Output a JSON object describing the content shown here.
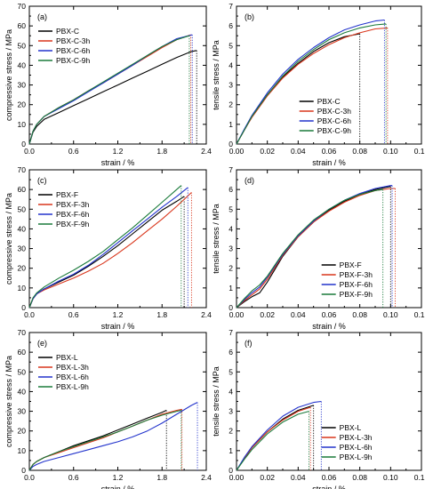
{
  "chart_data": [
    {
      "type": "line",
      "panel_label": "(a)",
      "xlabel": "strain / %",
      "ylabel": "compressive stress / MPa",
      "xlim": [
        0,
        2.4
      ],
      "ylim": [
        0,
        70
      ],
      "xticks": [
        0.0,
        0.6,
        1.2,
        1.8,
        2.4
      ],
      "yticks": [
        0,
        10,
        20,
        30,
        40,
        50,
        60,
        70
      ],
      "xtick_labels": [
        "0.0",
        "0.6",
        "1.2",
        "1.8",
        "2.4"
      ],
      "ytick_labels": [
        "0",
        "10",
        "20",
        "30",
        "40",
        "50",
        "60",
        "70"
      ],
      "legend_position": "top-left",
      "series": [
        {
          "name": "PBX-C",
          "color": "#000000",
          "x": [
            0,
            0.05,
            0.1,
            0.2,
            0.4,
            0.6,
            0.8,
            1.0,
            1.2,
            1.4,
            1.6,
            1.8,
            2.0,
            2.2,
            2.27
          ],
          "y": [
            0,
            6,
            9,
            12.5,
            16,
            19.5,
            23,
            26.5,
            30,
            33.5,
            37,
            40.5,
            44,
            47,
            47.5
          ]
        },
        {
          "name": "PBX-C-3h",
          "color": "#d9361c",
          "x": [
            0,
            0.05,
            0.1,
            0.2,
            0.4,
            0.6,
            0.8,
            1.0,
            1.2,
            1.4,
            1.6,
            1.8,
            2.0,
            2.19
          ],
          "y": [
            0,
            6.5,
            10,
            14,
            18.5,
            22.5,
            27,
            31,
            35.5,
            40,
            44.5,
            49,
            53,
            55.5
          ]
        },
        {
          "name": "PBX-C-6h",
          "color": "#2233cc",
          "x": [
            0,
            0.05,
            0.1,
            0.2,
            0.4,
            0.6,
            0.8,
            1.0,
            1.2,
            1.4,
            1.6,
            1.8,
            2.0,
            2.21
          ],
          "y": [
            0,
            6.5,
            10,
            14,
            18,
            22,
            26.5,
            31,
            35.5,
            40,
            45,
            49.5,
            53.5,
            55.5
          ]
        },
        {
          "name": "PBX-C-9h",
          "color": "#1a7a3a",
          "x": [
            0,
            0.05,
            0.1,
            0.2,
            0.4,
            0.6,
            0.8,
            1.0,
            1.2,
            1.4,
            1.6,
            1.8,
            2.0,
            2.17
          ],
          "y": [
            0,
            6.5,
            10,
            14,
            18.5,
            22.5,
            27,
            31.5,
            36,
            40.5,
            45,
            49.5,
            53,
            55
          ]
        }
      ]
    },
    {
      "type": "line",
      "panel_label": "(b)",
      "xlabel": "strain / %",
      "ylabel": "tensile stress / MPa",
      "xlim": [
        0,
        0.12
      ],
      "ylim": [
        0,
        7
      ],
      "xticks": [
        0.0,
        0.02,
        0.04,
        0.06,
        0.08,
        0.1,
        0.12
      ],
      "yticks": [
        0,
        1,
        2,
        3,
        4,
        5,
        6,
        7
      ],
      "xtick_labels": [
        "0.00",
        "0.02",
        "0.04",
        "0.06",
        "0.08",
        "0.10",
        "0.12"
      ],
      "ytick_labels": [
        "0",
        "1",
        "2",
        "3",
        "4",
        "5",
        "6",
        "7"
      ],
      "legend_position": "bottom-center",
      "series": [
        {
          "name": "PBX-C",
          "color": "#000000",
          "x": [
            0,
            0.005,
            0.01,
            0.02,
            0.03,
            0.04,
            0.05,
            0.06,
            0.07,
            0.08
          ],
          "y": [
            0,
            0.7,
            1.4,
            2.5,
            3.4,
            4.1,
            4.7,
            5.15,
            5.45,
            5.6
          ]
        },
        {
          "name": "PBX-C-3h",
          "color": "#d9361c",
          "x": [
            0,
            0.005,
            0.01,
            0.02,
            0.03,
            0.04,
            0.05,
            0.06,
            0.07,
            0.08,
            0.09,
            0.098
          ],
          "y": [
            0,
            0.7,
            1.35,
            2.45,
            3.35,
            4.05,
            4.6,
            5.05,
            5.4,
            5.65,
            5.85,
            5.9
          ]
        },
        {
          "name": "PBX-C-6h",
          "color": "#2233cc",
          "x": [
            0,
            0.005,
            0.01,
            0.02,
            0.03,
            0.04,
            0.05,
            0.06,
            0.07,
            0.08,
            0.09,
            0.096
          ],
          "y": [
            0,
            0.75,
            1.45,
            2.6,
            3.55,
            4.3,
            4.9,
            5.4,
            5.8,
            6.05,
            6.25,
            6.3
          ]
        },
        {
          "name": "PBX-C-9h",
          "color": "#1a7a3a",
          "x": [
            0,
            0.005,
            0.01,
            0.02,
            0.03,
            0.04,
            0.05,
            0.06,
            0.07,
            0.08,
            0.09,
            0.097
          ],
          "y": [
            0,
            0.7,
            1.4,
            2.5,
            3.45,
            4.2,
            4.8,
            5.3,
            5.65,
            5.9,
            6.05,
            6.1
          ]
        }
      ]
    },
    {
      "type": "line",
      "panel_label": "(c)",
      "xlabel": "strain / %",
      "ylabel": "compressive stress / MPa",
      "xlim": [
        0,
        2.4
      ],
      "ylim": [
        0,
        70
      ],
      "xticks": [
        0.0,
        0.6,
        1.2,
        1.8,
        2.4
      ],
      "yticks": [
        0,
        10,
        20,
        30,
        40,
        50,
        60,
        70
      ],
      "xtick_labels": [
        "0.0",
        "0.6",
        "1.2",
        "1.8",
        "2.4"
      ],
      "ytick_labels": [
        "0",
        "10",
        "20",
        "30",
        "40",
        "50",
        "60",
        "70"
      ],
      "legend_position": "top-left",
      "series": [
        {
          "name": "PBX-F",
          "color": "#000000",
          "x": [
            0,
            0.05,
            0.1,
            0.2,
            0.4,
            0.6,
            0.8,
            1.0,
            1.2,
            1.4,
            1.6,
            1.8,
            2.0,
            2.1
          ],
          "y": [
            0,
            4.5,
            7,
            9.5,
            13,
            16.5,
            21,
            26,
            31.5,
            37.5,
            43.5,
            49.5,
            54,
            56.5
          ]
        },
        {
          "name": "PBX-F-3h",
          "color": "#d9361c",
          "x": [
            0,
            0.05,
            0.1,
            0.2,
            0.4,
            0.6,
            0.8,
            1.0,
            1.2,
            1.4,
            1.6,
            1.8,
            2.0,
            2.2
          ],
          "y": [
            0,
            4.5,
            7,
            9,
            12,
            15,
            18.5,
            22.5,
            27.5,
            33,
            39,
            45,
            51.5,
            58.5
          ]
        },
        {
          "name": "PBX-F-6h",
          "color": "#2233cc",
          "x": [
            0,
            0.05,
            0.1,
            0.2,
            0.4,
            0.6,
            0.8,
            1.0,
            1.2,
            1.4,
            1.6,
            1.8,
            2.0,
            2.15
          ],
          "y": [
            0,
            4.5,
            7,
            9.5,
            13.5,
            17,
            21.5,
            27,
            33,
            39,
            45,
            51,
            56.5,
            61
          ]
        },
        {
          "name": "PBX-F-9h",
          "color": "#1a7a3a",
          "x": [
            0,
            0.05,
            0.1,
            0.2,
            0.4,
            0.6,
            0.8,
            1.0,
            1.2,
            1.4,
            1.6,
            1.8,
            2.0,
            2.06
          ],
          "y": [
            0,
            5,
            7.5,
            10.5,
            15,
            19,
            23.5,
            28.5,
            34.5,
            40.5,
            47,
            53.5,
            60,
            62
          ]
        }
      ]
    },
    {
      "type": "line",
      "panel_label": "(d)",
      "xlabel": "strain / %",
      "ylabel": "tensile stress / MPa",
      "xlim": [
        0,
        0.12
      ],
      "ylim": [
        0,
        7
      ],
      "xticks": [
        0.0,
        0.02,
        0.04,
        0.06,
        0.08,
        0.1,
        0.12
      ],
      "yticks": [
        0,
        1,
        2,
        3,
        4,
        5,
        6,
        7
      ],
      "xtick_labels": [
        "0.00",
        "0.02",
        "0.04",
        "0.06",
        "0.08",
        "0.10",
        "0.12"
      ],
      "ytick_labels": [
        "0",
        "1",
        "2",
        "3",
        "4",
        "5",
        "6",
        "7"
      ],
      "legend_position": "bottom-right",
      "series": [
        {
          "name": "PBX-F",
          "color": "#000000",
          "x": [
            0,
            0.005,
            0.01,
            0.015,
            0.02,
            0.03,
            0.04,
            0.05,
            0.06,
            0.07,
            0.08,
            0.09,
            0.1
          ],
          "y": [
            0,
            0.3,
            0.55,
            0.75,
            1.3,
            2.6,
            3.6,
            4.35,
            4.95,
            5.4,
            5.75,
            6.0,
            6.15
          ]
        },
        {
          "name": "PBX-F-3h",
          "color": "#d9361c",
          "x": [
            0,
            0.005,
            0.01,
            0.015,
            0.02,
            0.03,
            0.04,
            0.05,
            0.06,
            0.07,
            0.08,
            0.09,
            0.1,
            0.103
          ],
          "y": [
            0,
            0.35,
            0.65,
            0.95,
            1.45,
            2.65,
            3.6,
            4.35,
            4.9,
            5.35,
            5.7,
            5.95,
            6.05,
            6.05
          ]
        },
        {
          "name": "PBX-F-6h",
          "color": "#2233cc",
          "x": [
            0,
            0.005,
            0.01,
            0.015,
            0.02,
            0.03,
            0.04,
            0.05,
            0.06,
            0.07,
            0.08,
            0.09,
            0.1,
            0.101
          ],
          "y": [
            0,
            0.4,
            0.75,
            1.05,
            1.55,
            2.7,
            3.65,
            4.4,
            5.0,
            5.45,
            5.8,
            6.05,
            6.2,
            6.2
          ]
        },
        {
          "name": "PBX-F-9h",
          "color": "#1a7a3a",
          "x": [
            0,
            0.005,
            0.01,
            0.015,
            0.02,
            0.03,
            0.04,
            0.05,
            0.06,
            0.07,
            0.08,
            0.09,
            0.095
          ],
          "y": [
            0,
            0.45,
            0.85,
            1.15,
            1.6,
            2.75,
            3.7,
            4.45,
            5.0,
            5.45,
            5.75,
            5.95,
            6.0
          ]
        }
      ]
    },
    {
      "type": "line",
      "panel_label": "(e)",
      "xlabel": "strain / %",
      "ylabel": "compressive stress / MPa",
      "xlim": [
        0,
        2.4
      ],
      "ylim": [
        0,
        70
      ],
      "xticks": [
        0.0,
        0.6,
        1.2,
        1.8,
        2.4
      ],
      "yticks": [
        0,
        10,
        20,
        30,
        40,
        50,
        60,
        70
      ],
      "xtick_labels": [
        "0.0",
        "0.6",
        "1.2",
        "1.8",
        "2.4"
      ],
      "ytick_labels": [
        "0",
        "10",
        "20",
        "30",
        "40",
        "50",
        "60",
        "70"
      ],
      "legend_position": "top-left",
      "series": [
        {
          "name": "PBX-L",
          "color": "#000000",
          "x": [
            0,
            0.05,
            0.1,
            0.2,
            0.4,
            0.6,
            0.8,
            1.0,
            1.2,
            1.4,
            1.6,
            1.8,
            1.86
          ],
          "y": [
            0,
            3,
            4.5,
            6.5,
            9.5,
            12.5,
            15,
            17.5,
            20.5,
            23.5,
            26.5,
            29.5,
            30.5
          ]
        },
        {
          "name": "PBX-L-3h",
          "color": "#d9361c",
          "x": [
            0,
            0.05,
            0.1,
            0.2,
            0.4,
            0.6,
            0.8,
            1.0,
            1.2,
            1.4,
            1.6,
            1.8,
            2.0,
            2.07
          ],
          "y": [
            0,
            3,
            4.5,
            6.5,
            9,
            11.5,
            14,
            16.5,
            19.5,
            22.5,
            25.5,
            28.5,
            30.5,
            31
          ]
        },
        {
          "name": "PBX-L-6h",
          "color": "#2233cc",
          "x": [
            0,
            0.05,
            0.1,
            0.2,
            0.4,
            0.6,
            0.8,
            1.0,
            1.2,
            1.4,
            1.6,
            1.8,
            2.0,
            2.2,
            2.28
          ],
          "y": [
            0,
            2,
            3,
            4.5,
            6.5,
            8.5,
            10.5,
            12.5,
            14.5,
            17,
            20,
            24,
            28.5,
            33,
            34.5
          ]
        },
        {
          "name": "PBX-L-9h",
          "color": "#1a7a3a",
          "x": [
            0,
            0.05,
            0.1,
            0.2,
            0.4,
            0.6,
            0.8,
            1.0,
            1.2,
            1.4,
            1.6,
            1.8,
            2.0,
            2.06
          ],
          "y": [
            0,
            3,
            4.5,
            6.5,
            9.5,
            12,
            14.5,
            17,
            19.5,
            22.5,
            25.5,
            28,
            30,
            30.5
          ]
        }
      ]
    },
    {
      "type": "line",
      "panel_label": "(f)",
      "xlabel": "strain / %",
      "ylabel": "tensile stress / MPa",
      "xlim": [
        0,
        0.12
      ],
      "ylim": [
        0,
        7
      ],
      "xticks": [
        0.0,
        0.02,
        0.04,
        0.06,
        0.08,
        0.1,
        0.12
      ],
      "yticks": [
        0,
        1,
        2,
        3,
        4,
        5,
        6,
        7
      ],
      "xtick_labels": [
        "0.00",
        "0.02",
        "0.04",
        "0.06",
        "0.08",
        "0.10",
        "0.12"
      ],
      "ytick_labels": [
        "0",
        "1",
        "2",
        "3",
        "4",
        "5",
        "6",
        "7"
      ],
      "legend_position": "bottom-right",
      "series": [
        {
          "name": "PBX-L",
          "color": "#000000",
          "x": [
            0,
            0.005,
            0.01,
            0.02,
            0.03,
            0.04,
            0.05
          ],
          "y": [
            0,
            0.6,
            1.15,
            1.95,
            2.6,
            3.05,
            3.3
          ]
        },
        {
          "name": "PBX-L-3h",
          "color": "#d9361c",
          "x": [
            0,
            0.005,
            0.01,
            0.02,
            0.03,
            0.04,
            0.048
          ],
          "y": [
            0,
            0.6,
            1.15,
            1.95,
            2.55,
            3.0,
            3.2
          ]
        },
        {
          "name": "PBX-L-6h",
          "color": "#2233cc",
          "x": [
            0,
            0.005,
            0.01,
            0.02,
            0.03,
            0.04,
            0.05,
            0.055
          ],
          "y": [
            0,
            0.65,
            1.2,
            2.05,
            2.75,
            3.2,
            3.45,
            3.5
          ]
        },
        {
          "name": "PBX-L-9h",
          "color": "#1a7a3a",
          "x": [
            0,
            0.005,
            0.01,
            0.02,
            0.03,
            0.04,
            0.047
          ],
          "y": [
            0,
            0.55,
            1.05,
            1.85,
            2.45,
            2.85,
            3.0
          ]
        }
      ]
    }
  ]
}
